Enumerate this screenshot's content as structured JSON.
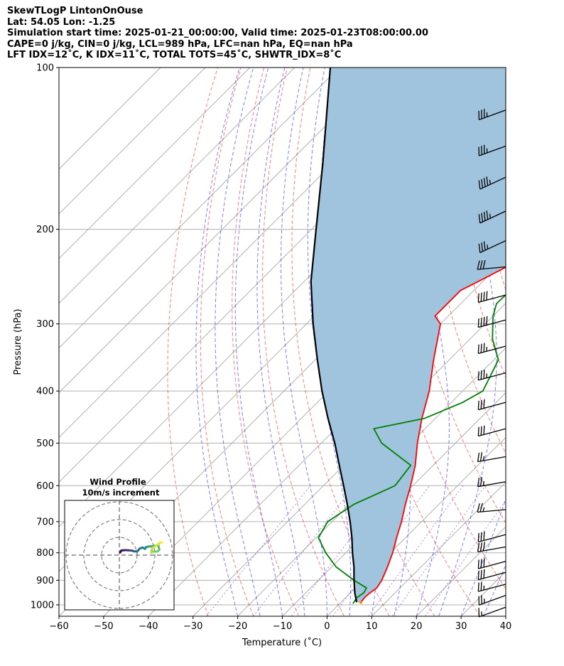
{
  "header": {
    "line1": "SkewTLogP LintonOnOuse",
    "line2": "Lat: 54.05   Lon: -1.25",
    "line3": "Simulation start time: 2025-01-21_00:00:00, Valid time: 2025-01-23T08:00:00.00",
    "line4": "CAPE=0 j/kg, CIN=0 j/kg, LCL=989 hPa, LFC=nan hPa, EQ=nan hPa",
    "line5": "LFT IDX=12˚C, K IDX=11˚C, TOTAL TOTS=45˚C, SHWTR_IDX=8˚C"
  },
  "chart_data": {
    "type": "skewt",
    "xlabel": "Temperature (˚C)",
    "ylabel": "Pressure (hPa)",
    "xlim": [
      -60,
      40
    ],
    "ylim": [
      1050,
      100
    ],
    "x_ticks": [
      -60,
      -50,
      -40,
      -30,
      -20,
      -10,
      0,
      10,
      20,
      30,
      40
    ],
    "y_ticks": [
      1000,
      900,
      800,
      700,
      600,
      500,
      400,
      300,
      200,
      100
    ],
    "grid": true,
    "temperature": {
      "color": "#ff0000",
      "p": [
        990,
        970,
        950,
        930,
        900,
        850,
        800,
        750,
        700,
        650,
        600,
        550,
        500,
        450,
        400,
        350,
        300,
        290,
        260,
        250,
        235,
        220,
        210,
        190,
        175,
        160,
        150,
        140,
        125,
        110,
        100
      ],
      "t": [
        4.5,
        4.2,
        4.4,
        4.8,
        4.2,
        2.5,
        0.5,
        -2,
        -4.5,
        -7.5,
        -10.5,
        -14,
        -18.5,
        -23,
        -27.5,
        -33.5,
        -40,
        -43,
        -43,
        -41,
        -38,
        -36.5,
        -35.5,
        -30.5,
        -25,
        -25,
        -25,
        -26.5,
        -30,
        -37,
        -42
      ]
    },
    "dewpoint": {
      "color": "#008000",
      "p": [
        995,
        970,
        950,
        930,
        900,
        850,
        800,
        750,
        700,
        650,
        600,
        550,
        500,
        470,
        450,
        420,
        400,
        350,
        320,
        290,
        275,
        240,
        220,
        205,
        185,
        160,
        140,
        120,
        100
      ],
      "t": [
        3,
        2.5,
        3,
        2.5,
        -2,
        -9,
        -14.5,
        -19.5,
        -21,
        -19,
        -14,
        -15,
        -26.5,
        -31.5,
        -22.5,
        -17.5,
        -15.5,
        -19,
        -25,
        -30,
        -32,
        -31.5,
        -32,
        -33.5,
        -41,
        -49,
        -55,
        -60,
        -67
      ]
    },
    "parcel": {
      "color": "#000000",
      "p": [
        989,
        950,
        900,
        850,
        800,
        750,
        700,
        650,
        600,
        550,
        500,
        450,
        400,
        350,
        300,
        250,
        200,
        150,
        100
      ],
      "t": [
        3.5,
        1,
        -2,
        -5,
        -8.5,
        -12,
        -16,
        -20.5,
        -25.5,
        -31,
        -37,
        -44,
        -51.5,
        -59.5,
        -68.5,
        -78.5,
        -89,
        -102.5,
        -122
      ]
    },
    "shaded_region_color": "#a0c4de",
    "wind_barbs_kt": [
      {
        "p": 1010,
        "speed": 15,
        "dir": 250
      },
      {
        "p": 960,
        "speed": 25,
        "dir": 250
      },
      {
        "p": 915,
        "speed": 25,
        "dir": 255
      },
      {
        "p": 870,
        "speed": 30,
        "dir": 255
      },
      {
        "p": 830,
        "speed": 30,
        "dir": 255
      },
      {
        "p": 780,
        "speed": 30,
        "dir": 260
      },
      {
        "p": 740,
        "speed": 30,
        "dir": 255
      },
      {
        "p": 665,
        "speed": 25,
        "dir": 265
      },
      {
        "p": 590,
        "speed": 25,
        "dir": 260
      },
      {
        "p": 530,
        "speed": 25,
        "dir": 260
      },
      {
        "p": 470,
        "speed": 30,
        "dir": 255
      },
      {
        "p": 420,
        "speed": 30,
        "dir": 255
      },
      {
        "p": 370,
        "speed": 35,
        "dir": 255
      },
      {
        "p": 330,
        "speed": 35,
        "dir": 255
      },
      {
        "p": 295,
        "speed": 40,
        "dir": 255
      },
      {
        "p": 265,
        "speed": 40,
        "dir": 255
      },
      {
        "p": 235,
        "speed": 30,
        "dir": 265
      },
      {
        "p": 210,
        "speed": 35,
        "dir": 245
      },
      {
        "p": 185,
        "speed": 45,
        "dir": 245
      },
      {
        "p": 160,
        "speed": 45,
        "dir": 245
      },
      {
        "p": 140,
        "speed": 35,
        "dir": 250
      },
      {
        "p": 120,
        "speed": 35,
        "dir": 250
      }
    ],
    "inset": {
      "title_line1": "Wind Profile",
      "title_line2": "10m/s increment",
      "hodograph_uv": [
        {
          "u": 0.5,
          "v": 1.5
        },
        {
          "u": 1,
          "v": 2.5
        },
        {
          "u": 2,
          "v": 2.7
        },
        {
          "u": 3.5,
          "v": 2.8
        },
        {
          "u": 5,
          "v": 2.7
        },
        {
          "u": 6.5,
          "v": 2.6
        },
        {
          "u": 7.5,
          "v": 2.5
        },
        {
          "u": 7.8,
          "v": 2.2
        },
        {
          "u": 10,
          "v": 2
        },
        {
          "u": 11.5,
          "v": 3.7
        },
        {
          "u": 13,
          "v": 4.3
        },
        {
          "u": 14.5,
          "v": 3.5
        },
        {
          "u": 15,
          "v": 4.5
        },
        {
          "u": 16.5,
          "v": 4.8
        },
        {
          "u": 18,
          "v": 5
        },
        {
          "u": 19.5,
          "v": 5.2
        },
        {
          "u": 22,
          "v": 5.5
        },
        {
          "u": 22.5,
          "v": 3
        },
        {
          "u": 21.5,
          "v": 2
        },
        {
          "u": 19,
          "v": 2
        },
        {
          "u": 18,
          "v": 1.5
        },
        {
          "u": 18.5,
          "v": 4
        },
        {
          "u": 21,
          "v": 5.5
        },
        {
          "u": 23,
          "v": 7
        },
        {
          "u": 24,
          "v": 7.2
        }
      ]
    }
  }
}
